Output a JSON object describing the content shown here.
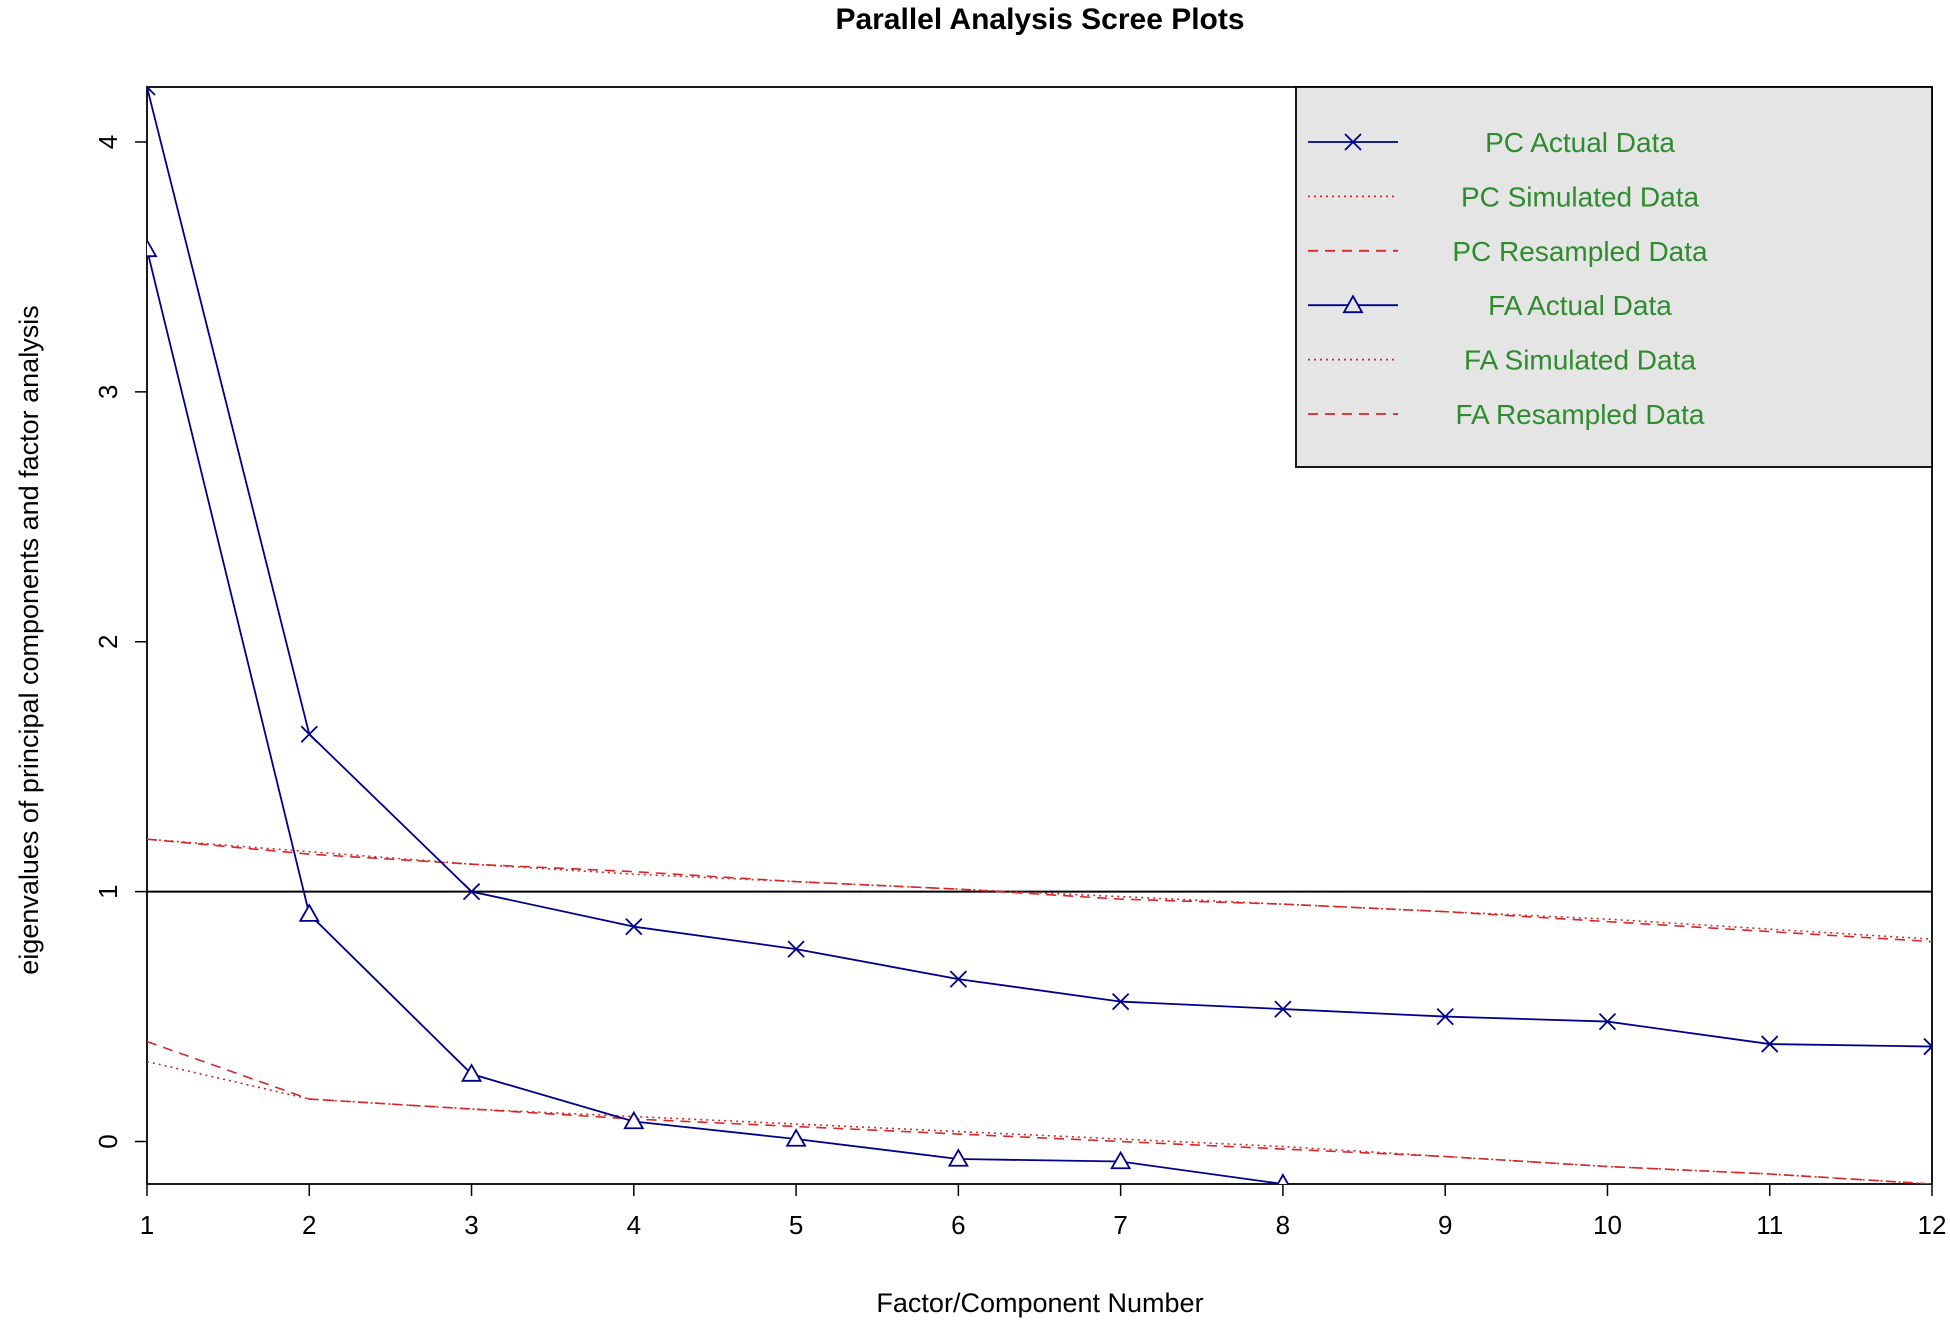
{
  "chart_data": {
    "type": "line",
    "title": "Parallel Analysis Scree Plots",
    "xlabel": "Factor/Component Number",
    "ylabel": "eigenvalues of principal components and factor analysis",
    "x": [
      1,
      2,
      3,
      4,
      5,
      6,
      7,
      8,
      9,
      10,
      11,
      12
    ],
    "xticks": [
      "1",
      "2",
      "3",
      "4",
      "5",
      "6",
      "7",
      "8",
      "9",
      "10",
      "11",
      "12"
    ],
    "yticks": [
      "0",
      "1",
      "2",
      "3",
      "4"
    ],
    "xlim": [
      1,
      12
    ],
    "ylim": [
      -0.17,
      4.22
    ],
    "reference_line": 1,
    "grid": false,
    "legend_position": "top-right",
    "series": [
      {
        "name": "PC  Actual Data",
        "color": "#00008b",
        "style": "solid",
        "marker": "x",
        "values": [
          4.22,
          1.63,
          1.0,
          0.86,
          0.77,
          0.65,
          0.56,
          0.53,
          0.5,
          0.48,
          0.39,
          0.38
        ]
      },
      {
        "name": "PC  Simulated Data",
        "color": "#d62728",
        "style": "dotted",
        "marker": "none",
        "values": [
          1.21,
          1.16,
          1.11,
          1.07,
          1.04,
          1.01,
          0.98,
          0.95,
          0.92,
          0.89,
          0.85,
          0.81
        ]
      },
      {
        "name": "PC  Resampled Data",
        "color": "#d62728",
        "style": "dashed",
        "marker": "none",
        "values": [
          1.21,
          1.15,
          1.11,
          1.08,
          1.04,
          1.01,
          0.97,
          0.95,
          0.92,
          0.88,
          0.84,
          0.8
        ]
      },
      {
        "name": "FA  Actual Data",
        "color": "#00008b",
        "style": "solid",
        "marker": "triangle",
        "values": [
          3.57,
          0.91,
          0.27,
          0.08,
          0.01,
          -0.07,
          -0.08,
          -0.17,
          null,
          null,
          null,
          null
        ]
      },
      {
        "name": "FA  Simulated Data",
        "color": "#d62728",
        "style": "dotted",
        "marker": "none",
        "values": [
          0.32,
          0.17,
          0.13,
          0.1,
          0.07,
          0.04,
          0.01,
          -0.02,
          -0.06,
          -0.1,
          -0.13,
          -0.17
        ]
      },
      {
        "name": "FA  Resampled Data",
        "color": "#d62728",
        "style": "dashed",
        "marker": "none",
        "values": [
          0.4,
          0.17,
          0.13,
          0.09,
          0.06,
          0.03,
          0.0,
          -0.03,
          -0.06,
          -0.1,
          -0.13,
          -0.17
        ]
      }
    ]
  }
}
